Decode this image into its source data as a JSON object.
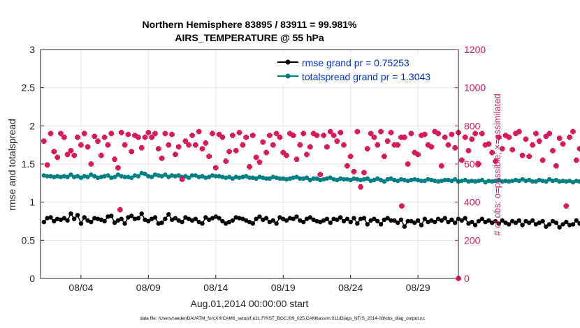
{
  "chart_data": {
    "type": "scatter",
    "title_line1": "Northern Hemisphere 83895 / 83911 = 99.981%",
    "title_line2": "AIRS_TEMPERATURE @ 55 hPa",
    "xlabel": "Aug.01,2014 00:00:00 start",
    "ylabel_left": "rmse and totalspread",
    "ylabel_right": "# of obs: o=possible; ×=assimilated",
    "footnote": "data file: /Users/raeder/DAI/ATM_forcXX/CAM6_setup/f.e21.FHIST_BGC.f09_025.CAM6assim.011/Diags_NTrS_2014-08/obs_diag_output.nc",
    "xlim_days": [
      1.0,
      32.0
    ],
    "x_ticks": [
      {
        "day": 4,
        "label": "08/04"
      },
      {
        "day": 9,
        "label": "08/09"
      },
      {
        "day": 14,
        "label": "08/14"
      },
      {
        "day": 19,
        "label": "08/19"
      },
      {
        "day": 24,
        "label": "08/24"
      },
      {
        "day": 29,
        "label": "08/29"
      }
    ],
    "ylim_left": [
      0,
      3
    ],
    "left_ticks": [
      "0",
      "0.5",
      "1",
      "1.5",
      "2",
      "2.5",
      "3"
    ],
    "ylim_right": [
      0,
      1200
    ],
    "right_ticks": [
      "0",
      "200",
      "400",
      "600",
      "800",
      "1000",
      "1200"
    ],
    "grid": true,
    "legend_position": "top-right",
    "legend": [
      {
        "label": "rmse grand pr = 0.75253",
        "color": "#000000"
      },
      {
        "label": "totalspread grand pr = 1.3043",
        "color": "#008080"
      }
    ],
    "colors": {
      "rmse": "#000000",
      "spread": "#008080",
      "obs": "#d6195c",
      "axis_right": "#d6195c",
      "legend_text": "#0033cc"
    },
    "x_start_day": 1.25,
    "x_step_days": 0.25,
    "series": [
      {
        "name": "rmse",
        "axis": "left",
        "values": [
          0.74,
          0.79,
          0.8,
          0.75,
          0.78,
          0.77,
          0.79,
          0.76,
          0.85,
          0.78,
          0.83,
          0.72,
          0.8,
          0.76,
          0.74,
          0.79,
          0.78,
          0.77,
          0.75,
          0.81,
          0.82,
          0.73,
          0.76,
          0.78,
          0.72,
          0.8,
          0.82,
          0.78,
          0.79,
          0.85,
          0.77,
          0.75,
          0.78,
          0.8,
          0.72,
          0.73,
          0.78,
          0.84,
          0.77,
          0.79,
          0.76,
          0.74,
          0.8,
          0.78,
          0.76,
          0.78,
          0.74,
          0.72,
          0.8,
          0.77,
          0.79,
          0.81,
          0.79,
          0.75,
          0.72,
          0.74,
          0.76,
          0.8,
          0.79,
          0.78,
          0.76,
          0.74,
          0.72,
          0.78,
          0.81,
          0.77,
          0.79,
          0.74,
          0.76,
          0.72,
          0.8,
          0.78,
          0.76,
          0.79,
          0.78,
          0.81,
          0.76,
          0.74,
          0.78,
          0.8,
          0.77,
          0.75,
          0.74,
          0.76,
          0.78,
          0.73,
          0.78,
          0.77,
          0.8,
          0.75,
          0.78,
          0.74,
          0.79,
          0.72,
          0.78,
          0.79,
          0.71,
          0.76,
          0.78,
          0.75,
          0.71,
          0.77,
          0.79,
          0.76,
          0.76,
          0.73,
          0.77,
          0.68,
          0.75,
          0.75,
          0.73,
          0.76,
          0.7,
          0.78,
          0.74,
          0.76,
          0.74,
          0.78,
          0.76,
          0.79,
          0.74,
          0.77,
          0.73,
          0.78,
          0.76,
          0.79,
          0.72,
          0.74,
          0.7,
          0.75,
          0.78,
          0.74,
          0.76,
          0.73,
          0.75,
          0.72,
          0.76,
          0.73,
          0.71,
          0.75,
          0.73,
          0.76,
          0.7,
          0.75,
          0.73,
          0.76,
          0.71,
          0.73,
          0.75,
          0.68,
          0.71,
          0.75,
          0.73,
          0.67,
          0.71,
          0.74,
          0.7,
          0.71,
          0.76,
          0.72,
          0.7,
          0.66,
          0.73,
          0.72,
          0.69,
          0.73,
          0.76,
          0.72,
          0.67,
          0.7,
          0.71,
          0.73,
          0.68,
          0.7,
          0.72,
          0.74,
          0.74
        ]
      },
      {
        "name": "totalspread",
        "axis": "left",
        "values": [
          1.35,
          1.34,
          1.34,
          1.33,
          1.34,
          1.33,
          1.34,
          1.33,
          1.36,
          1.33,
          1.34,
          1.32,
          1.34,
          1.33,
          1.36,
          1.34,
          1.32,
          1.33,
          1.34,
          1.35,
          1.32,
          1.33,
          1.36,
          1.34,
          1.33,
          1.33,
          1.32,
          1.35,
          1.34,
          1.38,
          1.37,
          1.34,
          1.33,
          1.36,
          1.35,
          1.34,
          1.36,
          1.33,
          1.35,
          1.34,
          1.35,
          1.33,
          1.34,
          1.32,
          1.35,
          1.35,
          1.33,
          1.34,
          1.32,
          1.33,
          1.35,
          1.34,
          1.34,
          1.33,
          1.32,
          1.33,
          1.31,
          1.33,
          1.32,
          1.33,
          1.34,
          1.32,
          1.32,
          1.31,
          1.33,
          1.32,
          1.31,
          1.31,
          1.33,
          1.32,
          1.31,
          1.31,
          1.3,
          1.31,
          1.32,
          1.33,
          1.31,
          1.31,
          1.32,
          1.29,
          1.31,
          1.31,
          1.29,
          1.3,
          1.31,
          1.32,
          1.3,
          1.29,
          1.31,
          1.3,
          1.3,
          1.29,
          1.31,
          1.3,
          1.29,
          1.3,
          1.31,
          1.28,
          1.29,
          1.31,
          1.29,
          1.27,
          1.3,
          1.31,
          1.29,
          1.28,
          1.3,
          1.29,
          1.28,
          1.29,
          1.3,
          1.29,
          1.28,
          1.28,
          1.3,
          1.29,
          1.28,
          1.27,
          1.28,
          1.29,
          1.29,
          1.28,
          1.3,
          1.27,
          1.28,
          1.29,
          1.27,
          1.28,
          1.27,
          1.28,
          1.29,
          1.26,
          1.28,
          1.27,
          1.28,
          1.29,
          1.27,
          1.28,
          1.27,
          1.28,
          1.29,
          1.28,
          1.3,
          1.28,
          1.29,
          1.27,
          1.27,
          1.29,
          1.28,
          1.27,
          1.3,
          1.28,
          1.29,
          1.27,
          1.28,
          1.27,
          1.28,
          1.26,
          1.28,
          1.27,
          1.28,
          1.27,
          1.28,
          1.26,
          1.28,
          1.27,
          1.28,
          1.26,
          1.27,
          1.27,
          1.26,
          1.25,
          1.26,
          1.25
        ]
      },
      {
        "name": "obs_count",
        "axis": "right",
        "values": [
          720,
          595,
          760,
          665,
          635,
          760,
          740,
          650,
          670,
          645,
          740,
          700,
          760,
          690,
          600,
          745,
          720,
          645,
          740,
          700,
          760,
          625,
          580,
          765,
          700,
          755,
          665,
          750,
          740,
          685,
          740,
          765,
          740,
          760,
          680,
          630,
          760,
          700,
          755,
          650,
          690,
          520,
          720,
          700,
          750,
          700,
          770,
          680,
          710,
          640,
          760,
          580,
          755,
          740,
          615,
          665,
          750,
          670,
          765,
          700,
          740,
          585,
          750,
          635,
          610,
          715,
          660,
          750,
          700,
          760,
          740,
          660,
          645,
          760,
          750,
          625,
          700,
          760,
          650,
          690,
          760,
          750,
          545,
          750,
          690,
          770,
          750,
          720,
          765,
          700,
          590,
          640,
          560,
          770,
          480,
          555,
          680,
          760,
          740,
          700,
          770,
          640,
          720,
          765,
          700,
          700,
          740,
          740,
          600,
          760,
          660,
          650,
          750,
          755,
          700,
          690,
          770,
          760,
          590,
          740,
          700,
          755,
          685,
          765,
          620,
          740,
          670,
          730,
          760,
          600,
          760,
          700,
          705,
          660,
          615,
          740,
          680,
          750,
          740,
          675,
          760,
          770,
          645,
          730,
          640,
          700,
          760,
          720,
          620,
          745,
          760,
          670,
          590,
          735,
          705,
          380,
          740,
          770,
          620,
          680,
          755,
          690,
          670,
          760,
          590,
          750,
          700,
          660,
          600,
          770,
          740,
          690,
          640,
          760,
          660,
          665,
          620,
          760,
          610
        ]
      },
      {
        "name": "obs_extra",
        "axis": "right",
        "points": [
          {
            "day": 6.9,
            "value": 360
          },
          {
            "day": 27.8,
            "value": 380
          },
          {
            "day": 32.0,
            "value": 0
          }
        ]
      }
    ]
  }
}
